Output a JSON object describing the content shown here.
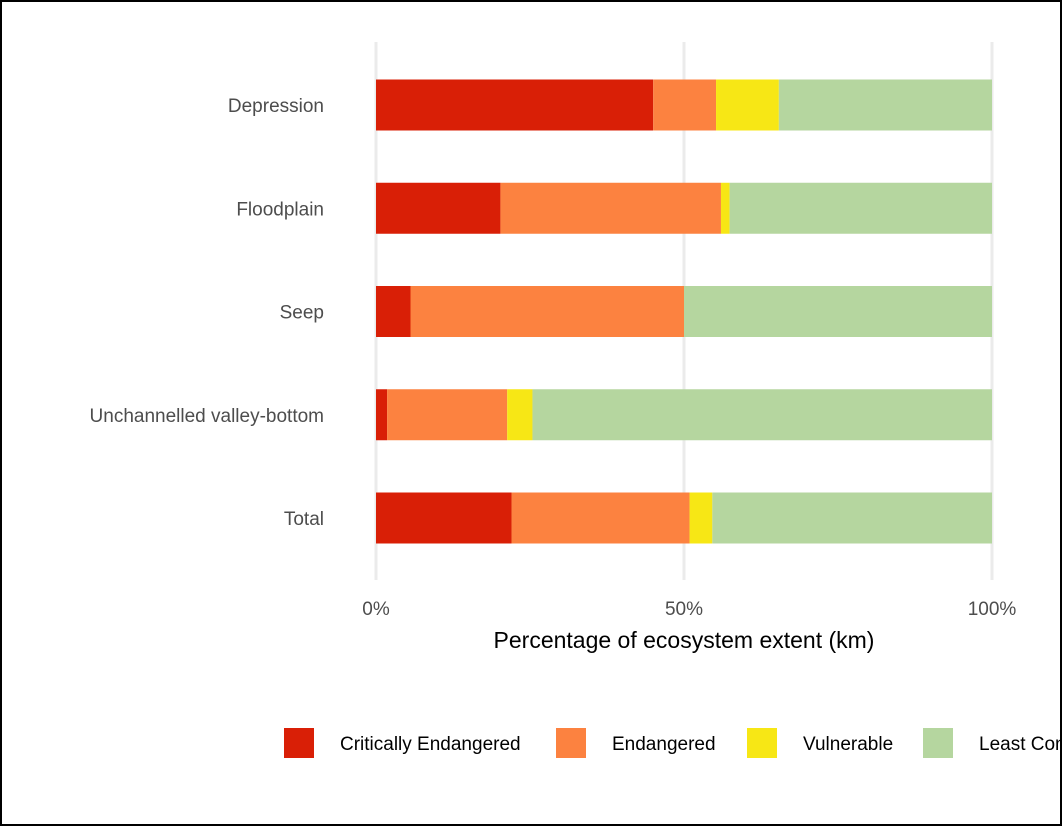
{
  "chart_data": {
    "type": "bar",
    "orientation": "horizontal",
    "stacked": true,
    "title": "",
    "xlabel": "Percentage of ecosystem extent (km)",
    "ylabel": "",
    "xlim": [
      0,
      100
    ],
    "x_ticks": [
      0,
      50,
      100
    ],
    "x_tick_labels": [
      "0%",
      "50%",
      "100%"
    ],
    "grid": "vertical-major",
    "legend_position": "bottom",
    "categories": [
      "Depression",
      "Floodplain",
      "Seep",
      "Unchannelled valley-bottom",
      "Total"
    ],
    "series": [
      {
        "name": "Critically Endangered",
        "color": "#d91f06",
        "values": [
          45.0,
          20.2,
          5.6,
          1.8,
          22.0
        ]
      },
      {
        "name": "Endangered",
        "color": "#fc8240",
        "values": [
          10.2,
          35.8,
          44.4,
          19.5,
          28.9
        ]
      },
      {
        "name": "Vulnerable",
        "color": "#f7e715",
        "values": [
          10.2,
          1.4,
          0.0,
          4.1,
          3.7
        ]
      },
      {
        "name": "Least Concern",
        "color": "#b5d69f",
        "values": [
          34.6,
          42.6,
          50.0,
          74.6,
          45.4
        ]
      }
    ]
  }
}
